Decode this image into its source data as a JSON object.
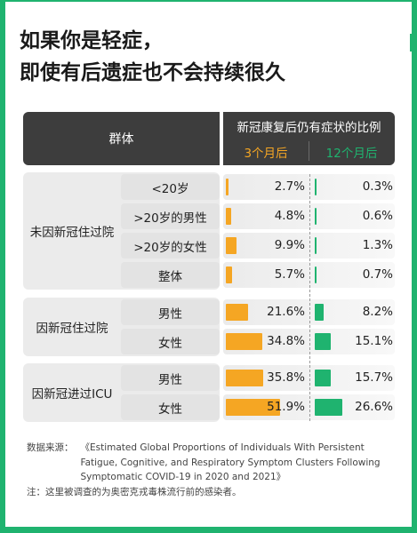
{
  "title": {
    "line1": "如果你是轻症，",
    "line2": "即使有后遗症也不会持续很久"
  },
  "header": {
    "group_label": "群体",
    "ratio_label": "新冠康复后仍有症状的比例",
    "col3_label": "3个月后",
    "col12_label": "12个月后"
  },
  "colors": {
    "accent_green": "#1fb36f",
    "accent_orange": "#f5a623",
    "header_bg": "#3d3d3d"
  },
  "groups": [
    {
      "label": "未因新冠住过院"
    },
    {
      "label": "因新冠住过院"
    },
    {
      "label": "因新冠进过ICU"
    }
  ],
  "chart_data": {
    "type": "bar",
    "categories": [
      "<20岁",
      ">20岁的男性",
      ">20岁的女性",
      "整体",
      "男性",
      "女性",
      "男性",
      "女性"
    ],
    "category_groups": [
      "未因新冠住过院",
      "未因新冠住过院",
      "未因新冠住过院",
      "未因新冠住过院",
      "因新冠住过院",
      "因新冠住过院",
      "因新冠进过ICU",
      "因新冠进过ICU"
    ],
    "series": [
      {
        "name": "3个月后",
        "values": [
          2.7,
          4.8,
          9.9,
          5.7,
          21.6,
          34.8,
          35.8,
          51.9
        ],
        "labels": [
          "2.7%",
          "4.8%",
          "9.9%",
          "5.7%",
          "21.6%",
          "34.8%",
          "35.8%",
          "51.9%"
        ]
      },
      {
        "name": "12个月后",
        "values": [
          0.3,
          0.6,
          1.3,
          0.7,
          8.2,
          15.1,
          15.7,
          26.6
        ],
        "labels": [
          "0.3%",
          "0.6%",
          "1.3%",
          "0.7%",
          "8.2%",
          "15.1%",
          "15.7%",
          "26.6%"
        ]
      }
    ],
    "title": "新冠康复后仍有症状的比例",
    "orientation": "horizontal"
  },
  "footer": {
    "source_label": "数据来源：",
    "source_text": "《Estimated Global Proportions of Individuals With Persistent Fatigue, Cognitive, and Respiratory Symptom Clusters Following Symptomatic COVID-19 in 2020 and 2021》",
    "note": "注：这里被调查的为奥密克戎毒株流行前的感染者。"
  }
}
